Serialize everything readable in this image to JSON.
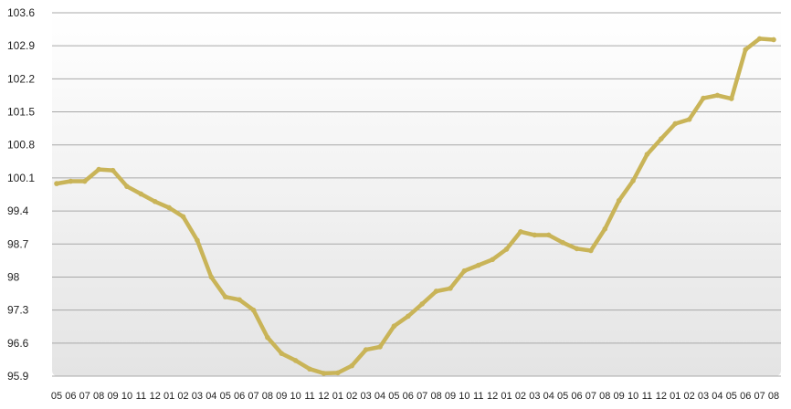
{
  "chart_data": {
    "type": "line",
    "title": "",
    "xlabel": "",
    "ylabel": "",
    "ylim": [
      95.9,
      103.6
    ],
    "y_ticks": [
      "103.6",
      "102.9",
      "102.2",
      "101.5",
      "100.8",
      "100.1",
      "99.4",
      "98.7",
      "98",
      "97.3",
      "96.6",
      "95.9"
    ],
    "grid": "horizontal",
    "legend": "none",
    "x": [
      "05",
      "06",
      "07",
      "08",
      "09",
      "10",
      "11",
      "12",
      "01",
      "02",
      "03",
      "04",
      "05",
      "06",
      "07",
      "08",
      "09",
      "10",
      "11",
      "12",
      "01",
      "02",
      "03",
      "04",
      "05",
      "06",
      "07",
      "08",
      "09",
      "10",
      "11",
      "12",
      "01",
      "02",
      "03",
      "04",
      "05",
      "06",
      "07",
      "08",
      "09",
      "10",
      "11",
      "12",
      "01",
      "02",
      "03",
      "04",
      "05",
      "06",
      "07",
      "08"
    ],
    "series": [
      {
        "values": [
          99.98,
          100.03,
          100.03,
          100.28,
          100.26,
          99.92,
          99.76,
          99.6,
          99.47,
          99.28,
          98.78,
          98.0,
          97.58,
          97.52,
          97.3,
          96.72,
          96.38,
          96.23,
          96.05,
          95.96,
          95.97,
          96.12,
          96.46,
          96.52,
          96.96,
          97.17,
          97.43,
          97.7,
          97.76,
          98.13,
          98.25,
          98.37,
          98.59,
          98.96,
          98.89,
          98.89,
          98.73,
          98.6,
          98.56,
          99.02,
          99.62,
          100.04,
          100.6,
          100.93,
          101.25,
          101.34,
          101.79,
          101.85,
          101.78,
          102.82,
          103.05,
          103.03
        ],
        "color": "#c9b458"
      }
    ],
    "colors": {
      "line": "#c9b458",
      "grid": "#a8a8a8",
      "plot_top": "#ffffff",
      "plot_bottom": "#e4e4e4"
    }
  }
}
